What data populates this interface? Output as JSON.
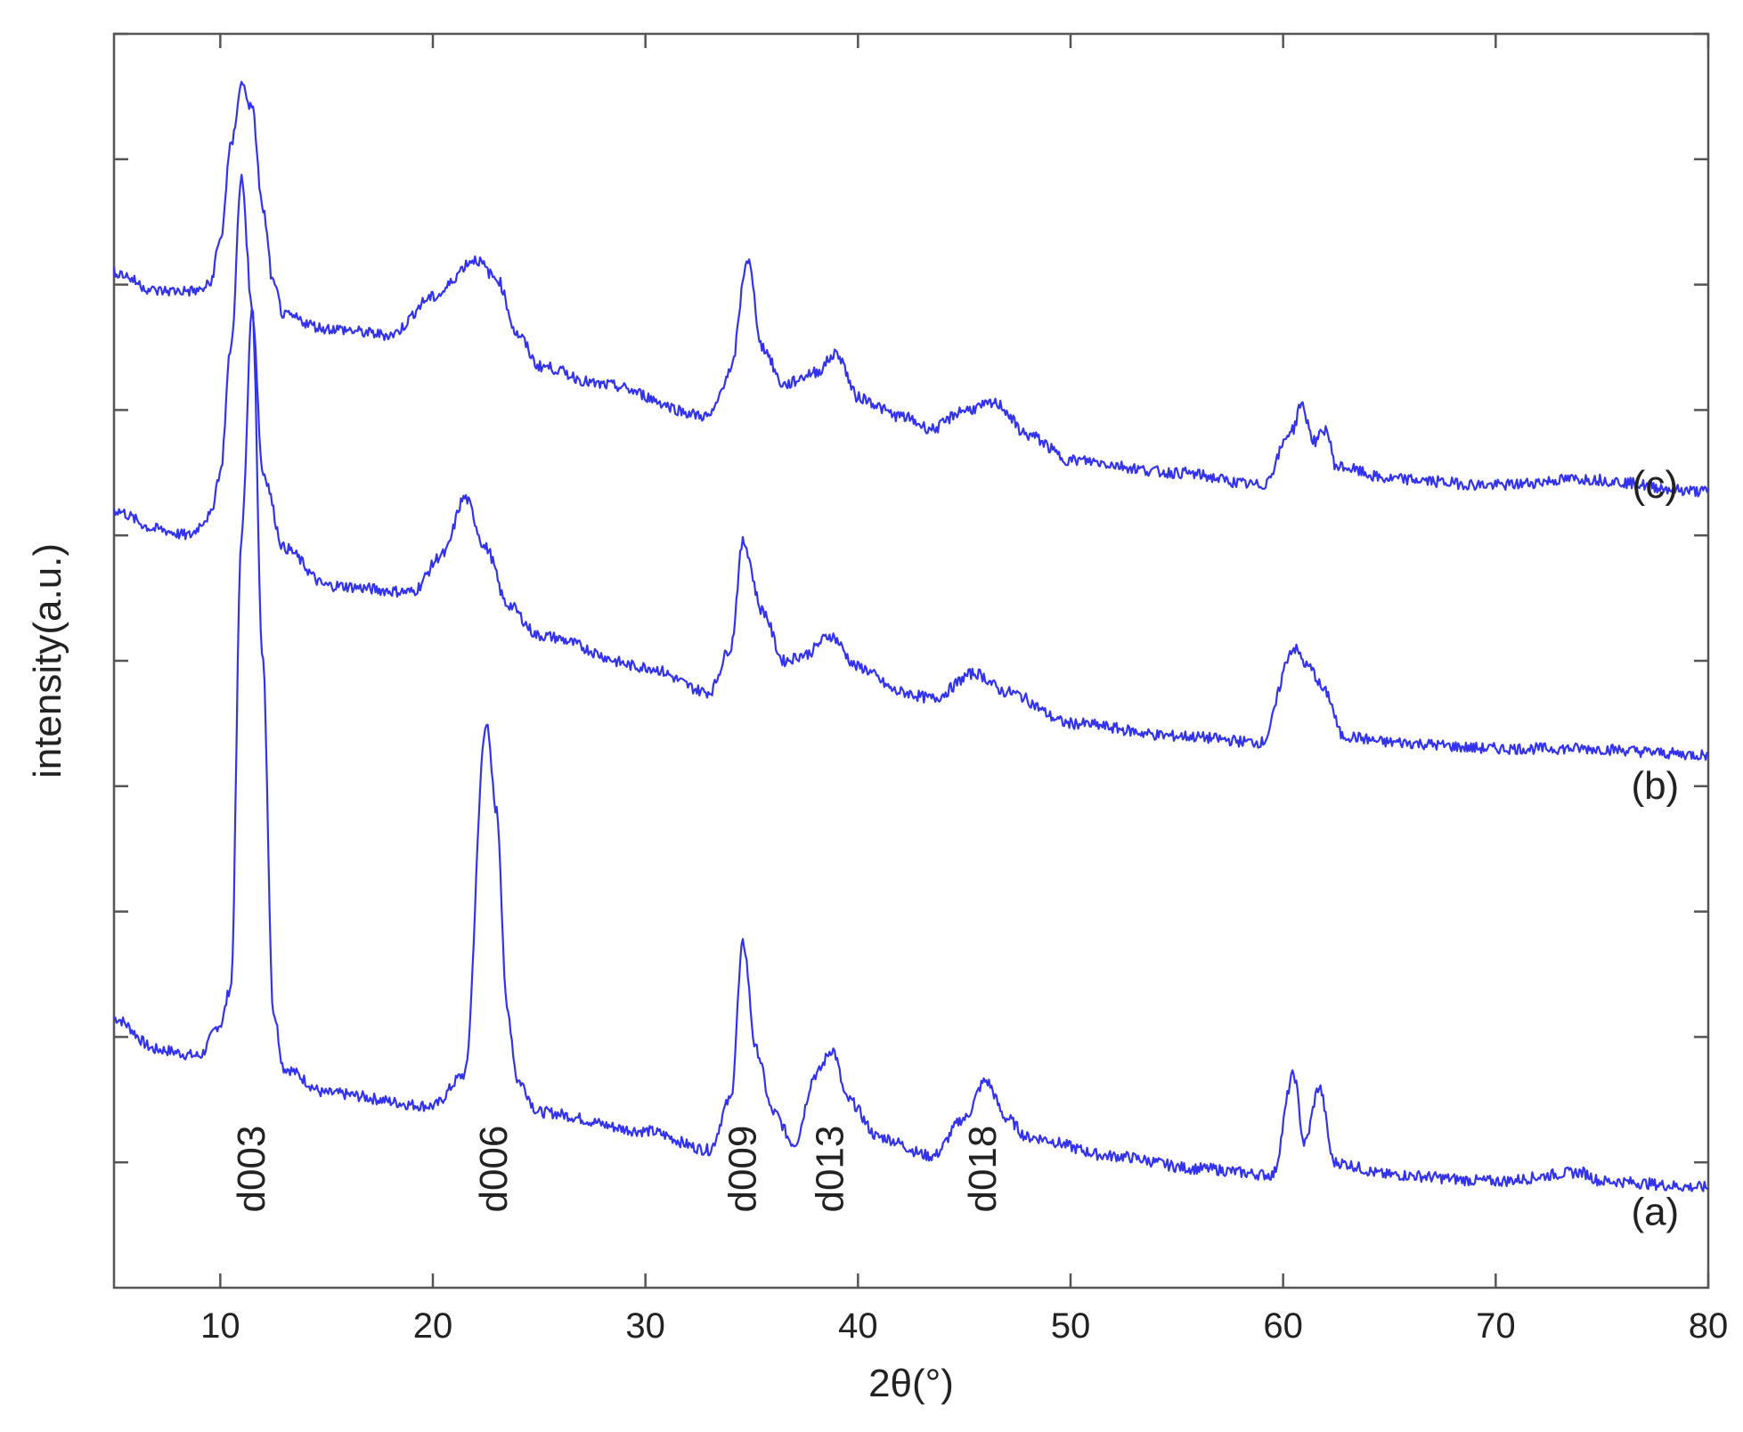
{
  "chart_data": {
    "type": "line",
    "title": "",
    "xlabel": "2θ(°)",
    "ylabel": "intensity(a.u.)",
    "xlim": [
      5,
      80
    ],
    "ylim": [
      0,
      10
    ],
    "x_ticks": [
      10,
      20,
      30,
      40,
      50,
      60,
      70,
      80
    ],
    "y_ticks": [
      1,
      2,
      3,
      4,
      5,
      6,
      7,
      8,
      9,
      10
    ],
    "y_tick_labels_shown": false,
    "grid": false,
    "legend": "none",
    "line_color": "#3333ee",
    "series": [
      {
        "name": "(a)",
        "x": [
          5,
          7,
          9,
          10,
          10.5,
          11,
          11.5,
          12,
          12.5,
          13,
          15,
          20,
          21.5,
          22.5,
          23,
          23.5,
          24,
          25,
          30,
          33,
          34,
          34.6,
          35.2,
          36,
          37,
          38,
          38.8,
          39.5,
          41,
          43.5,
          45,
          46,
          47,
          48,
          52,
          56,
          59.5,
          60.5,
          61,
          61.7,
          62.4,
          65,
          70,
          74,
          75,
          80
        ],
        "y": [
          2.15,
          1.9,
          1.85,
          2.1,
          2.4,
          6.0,
          7.8,
          5.0,
          2.2,
          1.75,
          1.55,
          1.45,
          1.7,
          4.5,
          3.8,
          2.2,
          1.65,
          1.4,
          1.25,
          1.1,
          1.5,
          2.75,
          1.9,
          1.4,
          1.15,
          1.7,
          1.9,
          1.5,
          1.2,
          1.05,
          1.35,
          1.65,
          1.35,
          1.2,
          1.05,
          0.95,
          0.9,
          1.7,
          1.15,
          1.6,
          1.0,
          0.9,
          0.85,
          0.92,
          0.85,
          0.8
        ]
      },
      {
        "name": "(b)",
        "x": [
          5,
          7,
          8.5,
          9.5,
          10,
          10.5,
          11,
          11.5,
          12,
          13,
          15,
          19,
          20.5,
          21.5,
          22.5,
          23.5,
          25,
          30,
          33,
          34,
          34.6,
          35.5,
          36.5,
          37.5,
          38.7,
          40,
          42,
          43.5,
          45.5,
          47,
          50,
          55,
          59,
          60.5,
          61.2,
          62,
          62.8,
          65,
          70,
          74,
          80
        ],
        "y": [
          6.2,
          6.05,
          6.0,
          6.15,
          6.5,
          7.5,
          8.85,
          7.8,
          6.5,
          5.9,
          5.6,
          5.55,
          5.85,
          6.3,
          5.9,
          5.45,
          5.2,
          4.95,
          4.75,
          5.1,
          5.95,
          5.4,
          5.0,
          5.05,
          5.2,
          4.95,
          4.75,
          4.7,
          4.9,
          4.75,
          4.5,
          4.4,
          4.35,
          5.1,
          4.95,
          4.75,
          4.4,
          4.35,
          4.3,
          4.3,
          4.25
        ]
      },
      {
        "name": "(c)",
        "x": [
          5,
          7,
          9,
          9.5,
          10,
          10.5,
          11,
          11.5,
          12,
          12.5,
          13,
          15,
          18,
          20,
          22,
          23,
          24,
          25,
          28,
          33,
          34,
          34.8,
          35.5,
          36.5,
          38,
          39,
          40,
          42,
          43.5,
          45,
          46.5,
          48,
          50,
          55,
          59,
          60.5,
          60.8,
          61.5,
          62,
          62.5,
          65,
          70,
          74,
          80
        ],
        "y": [
          8.1,
          7.95,
          7.95,
          8.0,
          8.35,
          9.1,
          9.6,
          9.4,
          8.6,
          8.0,
          7.75,
          7.65,
          7.6,
          7.9,
          8.2,
          8.05,
          7.6,
          7.35,
          7.2,
          6.95,
          7.3,
          8.2,
          7.5,
          7.2,
          7.3,
          7.45,
          7.1,
          6.95,
          6.85,
          7.0,
          7.05,
          6.8,
          6.6,
          6.5,
          6.4,
          6.85,
          7.05,
          6.75,
          6.85,
          6.55,
          6.45,
          6.4,
          6.45,
          6.35
        ]
      }
    ],
    "annotations": [
      {
        "text": "d003",
        "x": 11.5,
        "y": 0.6
      },
      {
        "text": "d006",
        "x": 22.9,
        "y": 0.6
      },
      {
        "text": "d009",
        "x": 34.6,
        "y": 0.6
      },
      {
        "text": "d013",
        "x": 38.7,
        "y": 0.6
      },
      {
        "text": "d018",
        "x": 45.9,
        "y": 0.6
      }
    ],
    "series_labels": [
      {
        "text": "(c)",
        "x": 77.5,
        "y": 6.3
      },
      {
        "text": "(b)",
        "x": 77.5,
        "y": 3.9
      },
      {
        "text": "(a)",
        "x": 77.5,
        "y": 0.5
      }
    ]
  }
}
